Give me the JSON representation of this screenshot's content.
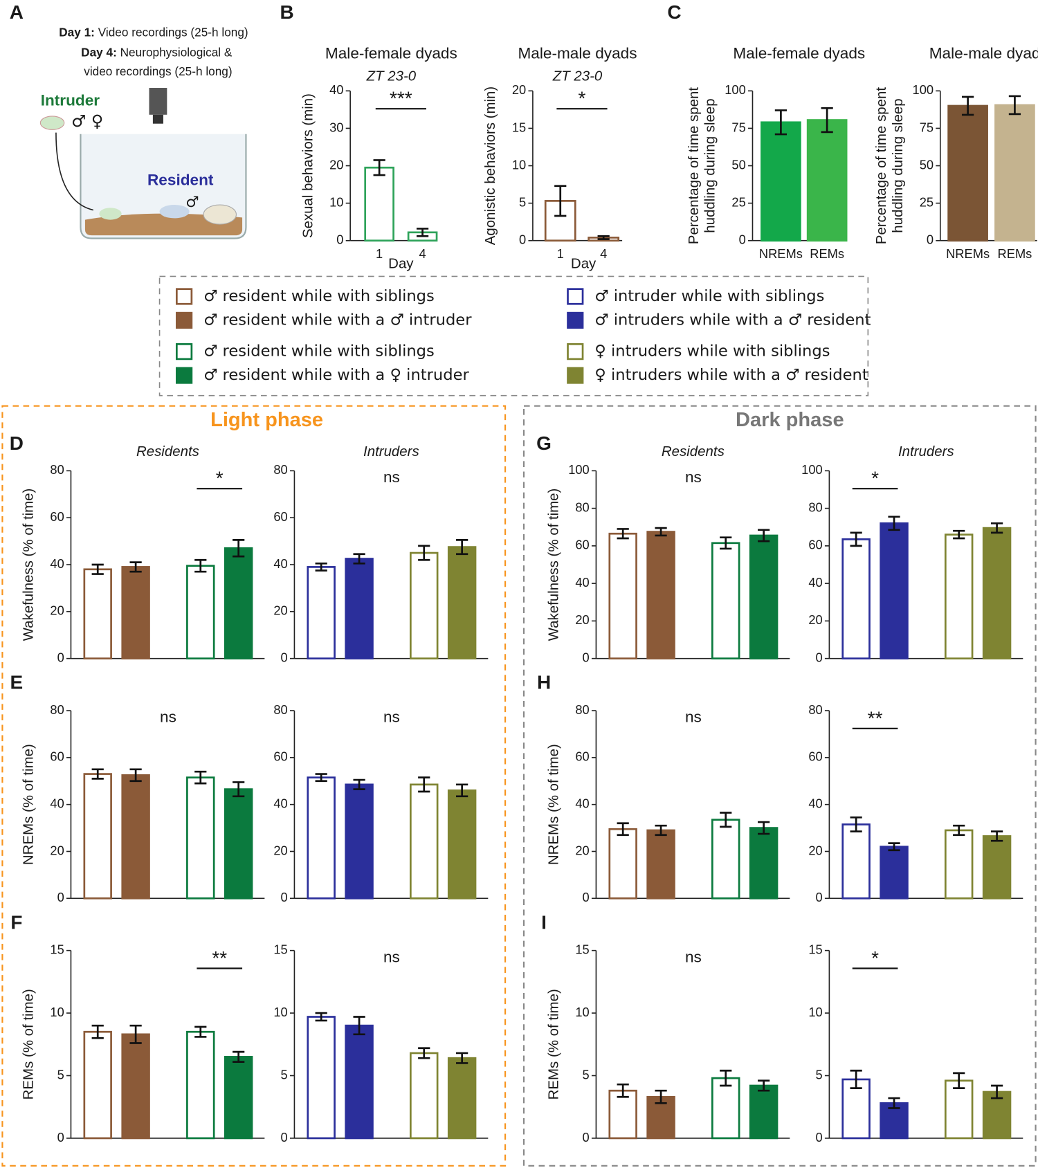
{
  "panel_labels": [
    "A",
    "B",
    "C",
    "D",
    "E",
    "F",
    "G",
    "H",
    "I"
  ],
  "panel_a": {
    "day1_label": "Day 1:",
    "day1_text": "Video recordings (25-h long)",
    "day4_label": "Day 4:",
    "day4_text": "Neurophysiological &",
    "day4_text2": "video recordings (25-h long)",
    "intruder": "Intruder",
    "intruder_sex": "♂ ♀",
    "resident": "Resident",
    "resident_sex": "♂"
  },
  "legend": {
    "items": [
      {
        "label": "♂ resident while with siblings",
        "color": "#8b5a38",
        "filled": false
      },
      {
        "label": "♂ resident while with a ♂ intruder",
        "color": "#8b5a38",
        "filled": true
      },
      {
        "label": "♂ resident while with siblings",
        "color": "#0b7a3e",
        "filled": false
      },
      {
        "label": "♂ resident while with a ♀ intruder",
        "color": "#0b7a3e",
        "filled": true
      },
      {
        "label": "♂ intruder while with siblings",
        "color": "#2b2f9b",
        "filled": false
      },
      {
        "label": "♂ intruders while with a ♂ resident",
        "color": "#2b2f9b",
        "filled": true
      },
      {
        "label": "♀ intruders while with siblings",
        "color": "#7f8432",
        "filled": false
      },
      {
        "label": "♀ intruders while with a ♂ resident",
        "color": "#7f8432",
        "filled": true
      }
    ]
  },
  "phases": [
    "Light phase",
    "Dark phase"
  ],
  "chart_data": [
    {
      "type": "bar",
      "title": "Male-female dyads",
      "subtitle": "ZT 23-0",
      "ylabel": [
        "Sexual behaviors (min)"
      ],
      "xlabel": "Day",
      "categories": [
        "1",
        "4"
      ],
      "values": [
        19.5,
        2.2
      ],
      "errors": [
        2,
        1
      ],
      "colors": [
        "#2ea35a",
        "#2ea35a"
      ],
      "filled": [
        false,
        false
      ],
      "ylim": [
        0,
        40
      ],
      "yticks": [
        0,
        10,
        20,
        30,
        40
      ],
      "significance": [
        {
          "text": "***",
          "bars": [
            0,
            1
          ]
        }
      ]
    },
    {
      "type": "bar",
      "title": "Male-male dyads",
      "subtitle": "ZT 23-0",
      "ylabel": [
        "Agonistic behaviors (min)"
      ],
      "xlabel": "Day",
      "categories": [
        "1",
        "4"
      ],
      "values": [
        5.3,
        0.4
      ],
      "errors": [
        2,
        0.2
      ],
      "colors": [
        "#8b5a38",
        "#8b5a38"
      ],
      "filled": [
        false,
        false
      ],
      "ylim": [
        0,
        20
      ],
      "yticks": [
        0,
        5,
        10,
        15,
        20
      ],
      "significance": [
        {
          "text": "*",
          "bars": [
            0,
            1
          ]
        }
      ]
    },
    {
      "type": "bar",
      "title": "Male-female dyads",
      "ylabel": [
        "Percentage of time spent",
        "huddling during sleep"
      ],
      "categories": [
        "NREMs",
        "REMs"
      ],
      "values": [
        79,
        80.5
      ],
      "errors": [
        8,
        8
      ],
      "colors": [
        "#13a84a",
        "#3ab54a"
      ],
      "filled": [
        true,
        true
      ],
      "ylim": [
        0,
        100
      ],
      "yticks": [
        0,
        25,
        50,
        75,
        100
      ]
    },
    {
      "type": "bar",
      "title": "Male-male dyads",
      "ylabel": [
        "Percentage of time spent",
        "huddling during sleep"
      ],
      "categories": [
        "NREMs",
        "REMs"
      ],
      "values": [
        90,
        90.5
      ],
      "errors": [
        6,
        6
      ],
      "colors": [
        "#7b5535",
        "#c4b38f"
      ],
      "filled": [
        true,
        true
      ],
      "ylim": [
        0,
        100
      ],
      "yticks": [
        0,
        25,
        50,
        75,
        100
      ]
    },
    {
      "type": "bar",
      "subtitle": "Residents",
      "ylabel": [
        "Wakefulness (% of time)"
      ],
      "values": [
        38,
        39,
        39.5,
        47
      ],
      "errors": [
        2,
        2,
        2.5,
        3.5
      ],
      "colors": [
        "#8b5a38",
        "#8b5a38",
        "#0b7a3e",
        "#0b7a3e"
      ],
      "filled": [
        false,
        true,
        false,
        true
      ],
      "ylim": [
        0,
        80
      ],
      "yticks": [
        0,
        20,
        40,
        60,
        80
      ],
      "significance": [
        {
          "text": "*",
          "bars": [
            2,
            3
          ]
        }
      ]
    },
    {
      "type": "bar",
      "subtitle": "Intruders",
      "values": [
        39,
        42.5,
        45,
        47.5
      ],
      "errors": [
        1.5,
        2,
        3,
        3
      ],
      "colors": [
        "#2b2f9b",
        "#2b2f9b",
        "#7f8432",
        "#7f8432"
      ],
      "filled": [
        false,
        true,
        false,
        true
      ],
      "ylim": [
        0,
        80
      ],
      "yticks": [
        0,
        20,
        40,
        60,
        80
      ],
      "significance": [
        {
          "text": "ns"
        }
      ]
    },
    {
      "type": "bar",
      "subtitle": "Residents",
      "ylabel": [
        "Wakefulness (% of time)"
      ],
      "values": [
        66.5,
        67.5,
        61.5,
        65.5
      ],
      "errors": [
        2.5,
        2,
        3,
        3
      ],
      "colors": [
        "#8b5a38",
        "#8b5a38",
        "#0b7a3e",
        "#0b7a3e"
      ],
      "filled": [
        false,
        true,
        false,
        true
      ],
      "ylim": [
        0,
        100
      ],
      "yticks": [
        0,
        20,
        40,
        60,
        80,
        100
      ],
      "significance": [
        {
          "text": "ns"
        }
      ]
    },
    {
      "type": "bar",
      "subtitle": "Intruders",
      "values": [
        63.5,
        72,
        66,
        69.5
      ],
      "errors": [
        3.5,
        3.5,
        2,
        2.5
      ],
      "colors": [
        "#2b2f9b",
        "#2b2f9b",
        "#7f8432",
        "#7f8432"
      ],
      "filled": [
        false,
        true,
        false,
        true
      ],
      "ylim": [
        0,
        100
      ],
      "yticks": [
        0,
        20,
        40,
        60,
        80,
        100
      ],
      "significance": [
        {
          "text": "*",
          "bars": [
            0,
            1
          ]
        }
      ]
    },
    {
      "type": "bar",
      "ylabel": [
        "NREMs (% of time)"
      ],
      "values": [
        53,
        52.5,
        51.5,
        46.5
      ],
      "errors": [
        2,
        2.5,
        2.5,
        3
      ],
      "colors": [
        "#8b5a38",
        "#8b5a38",
        "#0b7a3e",
        "#0b7a3e"
      ],
      "filled": [
        false,
        true,
        false,
        true
      ],
      "ylim": [
        0,
        80
      ],
      "yticks": [
        0,
        20,
        40,
        60,
        80
      ],
      "significance": [
        {
          "text": "ns"
        }
      ]
    },
    {
      "type": "bar",
      "values": [
        51.5,
        48.5,
        48.5,
        46
      ],
      "errors": [
        1.5,
        2,
        3,
        2.5
      ],
      "colors": [
        "#2b2f9b",
        "#2b2f9b",
        "#7f8432",
        "#7f8432"
      ],
      "filled": [
        false,
        true,
        false,
        true
      ],
      "ylim": [
        0,
        80
      ],
      "yticks": [
        0,
        20,
        40,
        60,
        80
      ],
      "significance": [
        {
          "text": "ns"
        }
      ]
    },
    {
      "type": "bar",
      "ylabel": [
        "NREMs (% of time)"
      ],
      "values": [
        29.5,
        29,
        33.5,
        30
      ],
      "errors": [
        2.5,
        2,
        3,
        2.5
      ],
      "colors": [
        "#8b5a38",
        "#8b5a38",
        "#0b7a3e",
        "#0b7a3e"
      ],
      "filled": [
        false,
        true,
        false,
        true
      ],
      "ylim": [
        0,
        80
      ],
      "yticks": [
        0,
        20,
        40,
        60,
        80
      ],
      "significance": [
        {
          "text": "ns"
        }
      ]
    },
    {
      "type": "bar",
      "values": [
        31.5,
        22,
        29,
        26.5
      ],
      "errors": [
        3,
        1.5,
        2,
        2
      ],
      "colors": [
        "#2b2f9b",
        "#2b2f9b",
        "#7f8432",
        "#7f8432"
      ],
      "filled": [
        false,
        true,
        false,
        true
      ],
      "ylim": [
        0,
        80
      ],
      "yticks": [
        0,
        20,
        40,
        60,
        80
      ],
      "significance": [
        {
          "text": "**",
          "bars": [
            0,
            1
          ]
        }
      ]
    },
    {
      "type": "bar",
      "ylabel": [
        "REMs (% of time)"
      ],
      "values": [
        8.5,
        8.3,
        8.5,
        6.5
      ],
      "errors": [
        0.5,
        0.7,
        0.4,
        0.4
      ],
      "colors": [
        "#8b5a38",
        "#8b5a38",
        "#0b7a3e",
        "#0b7a3e"
      ],
      "filled": [
        false,
        true,
        false,
        true
      ],
      "ylim": [
        0,
        15
      ],
      "yticks": [
        0,
        5,
        10,
        15
      ],
      "significance": [
        {
          "text": "**",
          "bars": [
            2,
            3
          ]
        }
      ]
    },
    {
      "type": "bar",
      "values": [
        9.7,
        9.0,
        6.8,
        6.4
      ],
      "errors": [
        0.3,
        0.7,
        0.4,
        0.4
      ],
      "colors": [
        "#2b2f9b",
        "#2b2f9b",
        "#7f8432",
        "#7f8432"
      ],
      "filled": [
        false,
        true,
        false,
        true
      ],
      "ylim": [
        0,
        15
      ],
      "yticks": [
        0,
        5,
        10,
        15
      ],
      "significance": [
        {
          "text": "ns"
        }
      ]
    },
    {
      "type": "bar",
      "ylabel": [
        "REMs (% of time)"
      ],
      "values": [
        3.8,
        3.3,
        4.8,
        4.2
      ],
      "errors": [
        0.5,
        0.5,
        0.6,
        0.4
      ],
      "colors": [
        "#8b5a38",
        "#8b5a38",
        "#0b7a3e",
        "#0b7a3e"
      ],
      "filled": [
        false,
        true,
        false,
        true
      ],
      "ylim": [
        0,
        15
      ],
      "yticks": [
        0,
        5,
        10,
        15
      ],
      "significance": [
        {
          "text": "ns"
        }
      ]
    },
    {
      "type": "bar",
      "values": [
        4.7,
        2.8,
        4.6,
        3.7
      ],
      "errors": [
        0.7,
        0.4,
        0.6,
        0.5
      ],
      "colors": [
        "#2b2f9b",
        "#2b2f9b",
        "#7f8432",
        "#7f8432"
      ],
      "filled": [
        false,
        true,
        false,
        true
      ],
      "ylim": [
        0,
        15
      ],
      "yticks": [
        0,
        5,
        10,
        15
      ],
      "significance": [
        {
          "text": "*",
          "bars": [
            0,
            1
          ]
        }
      ]
    }
  ]
}
